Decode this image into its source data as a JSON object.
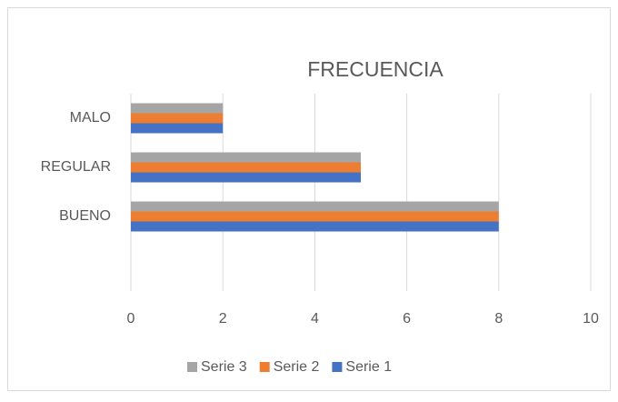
{
  "chart_data": {
    "type": "barh",
    "title": "FRECUENCIA",
    "categories": [
      "BUENO",
      "REGULAR",
      "MALO"
    ],
    "series": [
      {
        "name": "Serie 1",
        "color": "#4472c4",
        "values": [
          8,
          5,
          2
        ]
      },
      {
        "name": "Serie 2",
        "color": "#ed7d31",
        "values": [
          8,
          5,
          2
        ]
      },
      {
        "name": "Serie 3",
        "color": "#a5a5a5",
        "values": [
          8,
          5,
          2
        ]
      }
    ],
    "xlim": [
      0,
      10
    ],
    "xticks": [
      0,
      2,
      4,
      6,
      8,
      10
    ],
    "grid": true,
    "legend": "bottom"
  }
}
